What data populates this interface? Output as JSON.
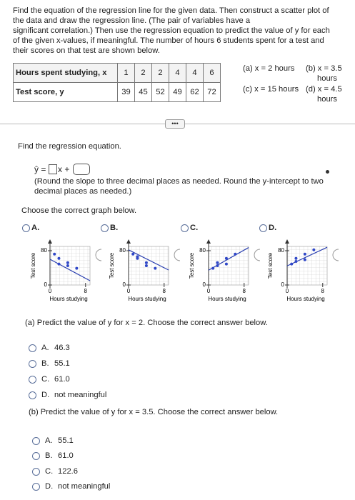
{
  "intro": [
    "Find the equation of the regression line for the given data. Then construct a scatter plot of",
    "the data and draw the regression line. (The pair of variables have a",
    "significant correlation.) Then use the regression equation to predict the value of y for each",
    "of the given x-values, if meaningful. The number of hours 6 students spent for a test and",
    "their scores on that test are shown below."
  ],
  "table": {
    "rows": [
      {
        "label": "Hours spent studying, x",
        "values": [
          1,
          2,
          2,
          4,
          4,
          6
        ]
      },
      {
        "label": "Test score, y",
        "values": [
          39,
          45,
          52,
          49,
          62,
          72
        ]
      }
    ]
  },
  "parts": [
    {
      "label": "(a) x = 2 hours"
    },
    {
      "label": "(b) x = 3.5",
      "label2": "hours"
    },
    {
      "label": "(c) x = 15 hours"
    },
    {
      "label": "(d) x = 4.5",
      "label2": "hours"
    }
  ],
  "more_button": "•••",
  "q1": {
    "prompt": "Find the regression equation.",
    "yhat": "ŷ =",
    "mid": "x +",
    "note": [
      "(Round the slope to three decimal places as needed. Round the y-intercept to two",
      "decimal places as needed.)"
    ]
  },
  "q2": {
    "prompt": "Choose the correct graph below.",
    "axes": {
      "xlim": [
        0,
        9
      ],
      "ylim": [
        0,
        90
      ],
      "xticks": [
        0,
        8
      ],
      "yticks": [
        0,
        80
      ],
      "xlabel": "Hours studying",
      "ylabel": "Test score"
    },
    "graphs": [
      {
        "option": "A.",
        "x": [
          1,
          2,
          2,
          4,
          4,
          6
        ],
        "y": [
          72,
          62,
          49,
          52,
          45,
          39
        ],
        "line": [
          60,
          10
        ]
      },
      {
        "option": "B.",
        "x": [
          1,
          2,
          2,
          4,
          4,
          6
        ],
        "y": [
          72,
          62,
          66,
          52,
          45,
          39
        ],
        "line": [
          82,
          35
        ]
      },
      {
        "option": "C.",
        "x": [
          1,
          2,
          2,
          4,
          4,
          6
        ],
        "y": [
          39,
          45,
          52,
          49,
          62,
          72
        ],
        "line": [
          34.6,
          87.4
        ]
      },
      {
        "option": "D.",
        "x": [
          1,
          2,
          2,
          4,
          4,
          6
        ],
        "y": [
          49,
          55,
          62,
          59,
          72,
          82
        ],
        "line": [
          44.6,
          88
        ]
      }
    ]
  },
  "qa": {
    "prompt": "(a) Predict the value of y for x = 2. Choose the correct answer below.",
    "options": [
      {
        "letter": "A.",
        "text": "46.3"
      },
      {
        "letter": "B.",
        "text": "55.1"
      },
      {
        "letter": "C.",
        "text": "61.0"
      },
      {
        "letter": "D.",
        "text": "not meaningful"
      }
    ]
  },
  "qb": {
    "prompt": "(b) Predict the value of y for x = 3.5. Choose the correct answer below.",
    "options": [
      {
        "letter": "A.",
        "text": "55.1"
      },
      {
        "letter": "B.",
        "text": "61.0"
      },
      {
        "letter": "C.",
        "text": "122.6"
      },
      {
        "letter": "D.",
        "text": "not meaningful"
      }
    ]
  }
}
